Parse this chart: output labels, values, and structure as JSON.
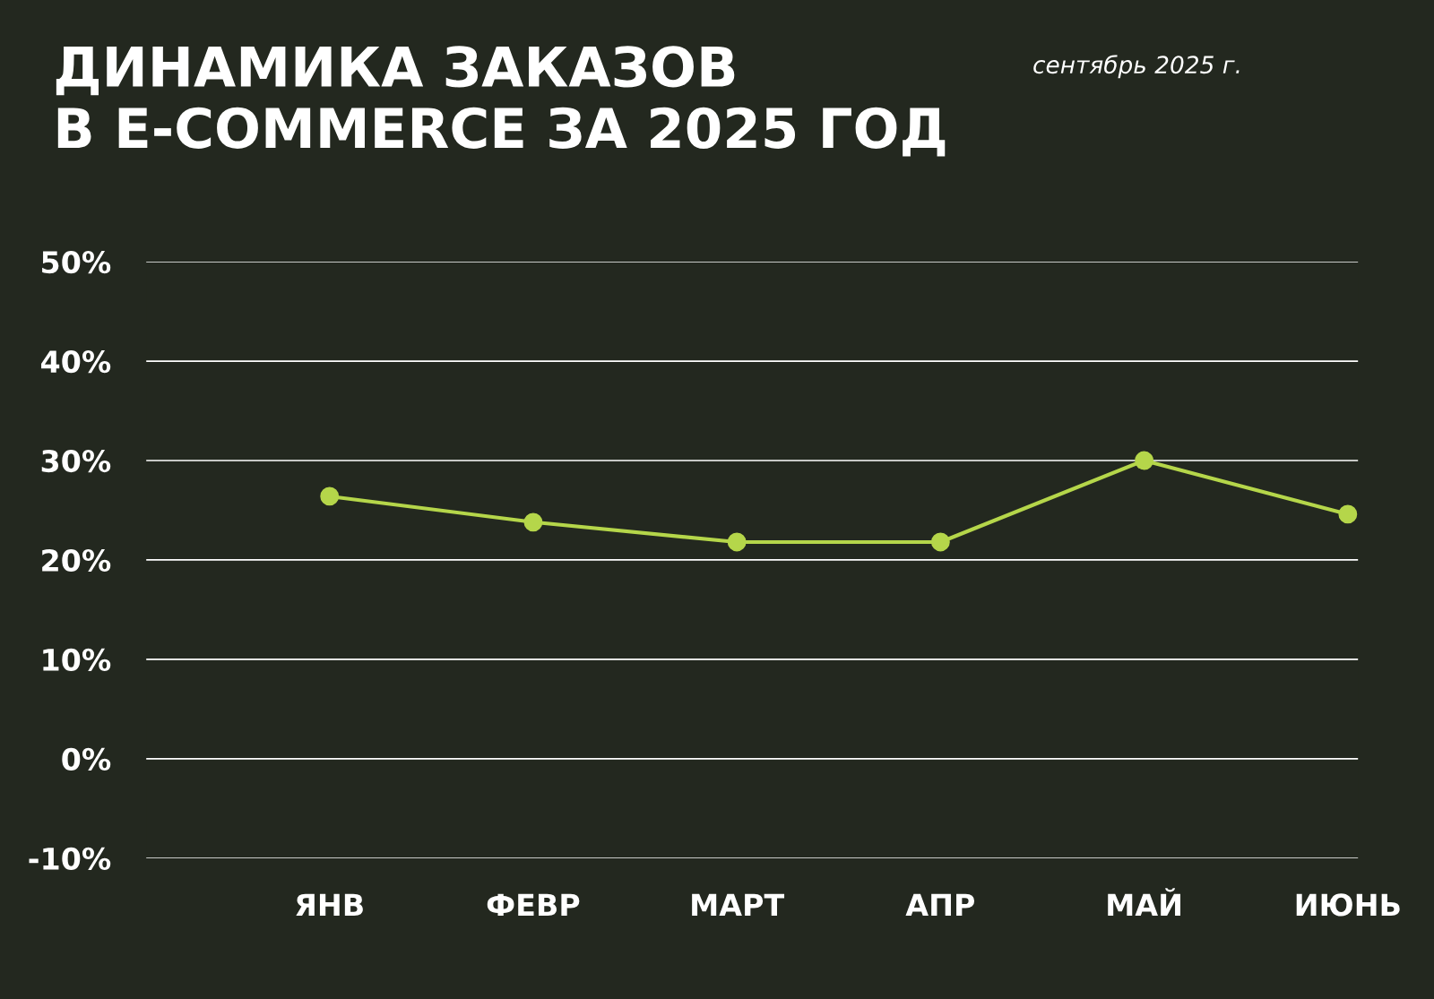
{
  "chart_data": {
    "type": "line",
    "title": "ДИНАМИКА ЗАКАЗОВ\nВ E-COMMERCE ЗА 2025 ГОД",
    "annotations": [
      "сентябрь 2025 г."
    ],
    "categories": [
      "ЯНВ",
      "ФЕВР",
      "МАРТ",
      "АПР",
      "МАЙ",
      "ИЮНЬ"
    ],
    "series": [
      {
        "color": "#b5d64a",
        "values": [
          26.4,
          23.8,
          21.8,
          21.8,
          30,
          24.6
        ]
      }
    ],
    "ylim": [
      -10,
      50
    ],
    "yticks": [
      {
        "value": -10,
        "label": "-10%"
      },
      {
        "value": 0,
        "label": "0%"
      },
      {
        "value": 10,
        "label": "10%"
      },
      {
        "value": 20,
        "label": "20%"
      },
      {
        "value": 30,
        "label": "30%"
      },
      {
        "value": 40,
        "label": "40%"
      },
      {
        "value": 50,
        "label": "50%"
      }
    ],
    "grid": "y",
    "marker": "circle",
    "line_style": "solid"
  }
}
